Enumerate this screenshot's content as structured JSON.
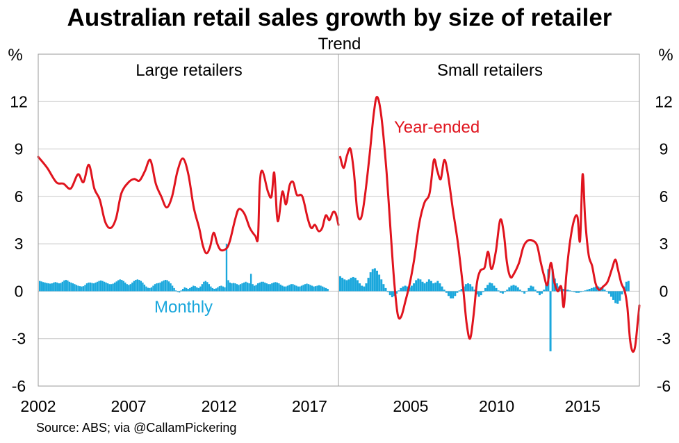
{
  "chart_data": {
    "type": "bar+line",
    "title": "Australian retail sales growth by size of retailer",
    "subtitle": "Trend",
    "source": "Source: ABS; via @CallamPickering",
    "ylabel_left": "%",
    "ylabel_right": "%",
    "ylim": [
      -6,
      15
    ],
    "yticks": [
      12,
      9,
      6,
      3,
      0,
      -3,
      -6
    ],
    "grid": true,
    "colors": {
      "year_ended": "#e0141e",
      "monthly": "#1aa7dc",
      "grid": "#c8c8c8",
      "divider": "#a0a0a0"
    },
    "series_labels": {
      "year_ended": "Year-ended",
      "monthly": "Monthly"
    },
    "panels": [
      {
        "name": "Large retailers",
        "xlim": [
          2002,
          2018.6
        ],
        "xticks": [
          2002,
          2007,
          2012,
          2017
        ],
        "year_ended": [
          [
            2002.0,
            8.5
          ],
          [
            2002.5,
            7.8
          ],
          [
            2003.0,
            6.9
          ],
          [
            2003.4,
            6.8
          ],
          [
            2003.8,
            6.5
          ],
          [
            2004.2,
            7.4
          ],
          [
            2004.5,
            6.9
          ],
          [
            2004.8,
            8.0
          ],
          [
            2005.1,
            6.5
          ],
          [
            2005.4,
            5.8
          ],
          [
            2005.7,
            4.4
          ],
          [
            2006.0,
            4.0
          ],
          [
            2006.3,
            4.6
          ],
          [
            2006.6,
            6.2
          ],
          [
            2007.0,
            6.9
          ],
          [
            2007.3,
            7.1
          ],
          [
            2007.6,
            7.0
          ],
          [
            2007.9,
            7.6
          ],
          [
            2008.2,
            8.3
          ],
          [
            2008.5,
            6.8
          ],
          [
            2008.8,
            6.0
          ],
          [
            2009.1,
            5.3
          ],
          [
            2009.4,
            6.0
          ],
          [
            2009.7,
            7.6
          ],
          [
            2010.0,
            8.4
          ],
          [
            2010.3,
            7.4
          ],
          [
            2010.6,
            5.3
          ],
          [
            2010.9,
            4.0
          ],
          [
            2011.1,
            2.9
          ],
          [
            2011.3,
            2.4
          ],
          [
            2011.5,
            2.8
          ],
          [
            2011.7,
            3.7
          ],
          [
            2011.9,
            3.0
          ],
          [
            2012.1,
            2.6
          ],
          [
            2012.4,
            2.7
          ],
          [
            2012.6,
            3.2
          ],
          [
            2012.9,
            4.6
          ],
          [
            2013.1,
            5.2
          ],
          [
            2013.4,
            4.9
          ],
          [
            2013.7,
            4.0
          ],
          [
            2014.0,
            3.5
          ],
          [
            2014.15,
            3.4
          ],
          [
            2014.25,
            6.8
          ],
          [
            2014.4,
            7.6
          ],
          [
            2014.7,
            6.3
          ],
          [
            2014.9,
            6.0
          ],
          [
            2015.05,
            7.5
          ],
          [
            2015.2,
            4.8
          ],
          [
            2015.3,
            4.6
          ],
          [
            2015.5,
            6.3
          ],
          [
            2015.7,
            5.5
          ],
          [
            2015.9,
            6.7
          ],
          [
            2016.1,
            6.9
          ],
          [
            2016.3,
            6.1
          ],
          [
            2016.6,
            6.0
          ],
          [
            2016.9,
            4.6
          ],
          [
            2017.1,
            4.0
          ],
          [
            2017.3,
            4.2
          ],
          [
            2017.5,
            3.8
          ],
          [
            2017.7,
            4.0
          ],
          [
            2017.9,
            4.8
          ],
          [
            2018.1,
            4.5
          ],
          [
            2018.3,
            5.0
          ],
          [
            2018.45,
            4.9
          ],
          [
            2018.6,
            4.2
          ]
        ],
        "monthly": [
          0.65,
          0.62,
          0.58,
          0.55,
          0.52,
          0.5,
          0.48,
          0.5,
          0.55,
          0.58,
          0.55,
          0.5,
          0.52,
          0.6,
          0.68,
          0.72,
          0.68,
          0.6,
          0.55,
          0.5,
          0.45,
          0.4,
          0.35,
          0.32,
          0.3,
          0.32,
          0.4,
          0.5,
          0.55,
          0.55,
          0.52,
          0.5,
          0.55,
          0.6,
          0.65,
          0.68,
          0.65,
          0.6,
          0.55,
          0.5,
          0.45,
          0.45,
          0.48,
          0.55,
          0.62,
          0.7,
          0.75,
          0.72,
          0.65,
          0.55,
          0.45,
          0.4,
          0.45,
          0.55,
          0.65,
          0.72,
          0.75,
          0.72,
          0.65,
          0.55,
          0.42,
          0.3,
          0.22,
          0.2,
          0.25,
          0.35,
          0.45,
          0.5,
          0.52,
          0.55,
          0.62,
          0.68,
          0.72,
          0.7,
          0.62,
          0.5,
          0.35,
          0.2,
          0.05,
          -0.05,
          -0.08,
          0.05,
          0.15,
          0.25,
          0.2,
          0.15,
          0.2,
          0.28,
          0.35,
          0.32,
          0.25,
          0.2,
          0.3,
          0.45,
          0.6,
          0.65,
          0.58,
          0.45,
          0.3,
          0.2,
          0.15,
          0.18,
          0.25,
          0.32,
          0.35,
          0.3,
          0.25,
          3.0,
          0.7,
          0.55,
          0.5,
          0.52,
          0.5,
          0.45,
          0.4,
          0.45,
          0.5,
          0.55,
          0.6,
          0.55,
          0.5,
          1.1,
          0.45,
          0.35,
          0.4,
          0.5,
          0.55,
          0.6,
          0.6,
          0.55,
          0.5,
          0.45,
          0.45,
          0.5,
          0.55,
          0.58,
          0.55,
          0.5,
          0.42,
          0.35,
          0.3,
          0.3,
          0.35,
          0.4,
          0.45,
          0.45,
          0.4,
          0.35,
          0.3,
          0.3,
          0.35,
          0.4,
          0.45,
          0.48,
          0.45,
          0.4,
          0.35,
          0.3,
          0.32,
          0.35,
          0.38,
          0.35,
          0.3,
          0.25,
          0.2,
          0.15
        ]
      },
      {
        "name": "Small retailers",
        "xlim": [
          2000.8,
          2018.3
        ],
        "xticks": [
          2005,
          2010,
          2015
        ],
        "year_ended": [
          [
            2000.9,
            8.5
          ],
          [
            2001.1,
            7.8
          ],
          [
            2001.3,
            8.6
          ],
          [
            2001.5,
            9.0
          ],
          [
            2001.7,
            7.5
          ],
          [
            2001.9,
            5.0
          ],
          [
            2002.1,
            4.6
          ],
          [
            2002.3,
            5.7
          ],
          [
            2002.6,
            8.5
          ],
          [
            2002.85,
            11.2
          ],
          [
            2003.05,
            12.3
          ],
          [
            2003.3,
            11.0
          ],
          [
            2003.6,
            7.5
          ],
          [
            2003.85,
            3.5
          ],
          [
            2004.05,
            0.5
          ],
          [
            2004.25,
            -1.5
          ],
          [
            2004.45,
            -1.6
          ],
          [
            2004.7,
            -0.6
          ],
          [
            2004.95,
            0.5
          ],
          [
            2005.2,
            2.0
          ],
          [
            2005.5,
            4.3
          ],
          [
            2005.8,
            5.6
          ],
          [
            2006.1,
            6.2
          ],
          [
            2006.35,
            8.3
          ],
          [
            2006.55,
            7.6
          ],
          [
            2006.75,
            7.1
          ],
          [
            2006.95,
            8.3
          ],
          [
            2007.15,
            7.5
          ],
          [
            2007.45,
            5.2
          ],
          [
            2007.75,
            3.0
          ],
          [
            2008.05,
            0.2
          ],
          [
            2008.25,
            -2.0
          ],
          [
            2008.45,
            -3.0
          ],
          [
            2008.65,
            -1.6
          ],
          [
            2008.85,
            0.5
          ],
          [
            2009.05,
            1.3
          ],
          [
            2009.3,
            1.5
          ],
          [
            2009.5,
            2.5
          ],
          [
            2009.7,
            1.4
          ],
          [
            2009.95,
            2.5
          ],
          [
            2010.2,
            4.5
          ],
          [
            2010.4,
            3.8
          ],
          [
            2010.6,
            1.8
          ],
          [
            2010.8,
            0.9
          ],
          [
            2011.0,
            1.1
          ],
          [
            2011.3,
            1.8
          ],
          [
            2011.55,
            2.8
          ],
          [
            2011.8,
            3.2
          ],
          [
            2012.1,
            3.2
          ],
          [
            2012.35,
            2.9
          ],
          [
            2012.55,
            1.9
          ],
          [
            2012.75,
            1.0
          ],
          [
            2012.95,
            0.4
          ],
          [
            2013.15,
            1.8
          ],
          [
            2013.35,
            0.6
          ],
          [
            2013.55,
            0.0
          ],
          [
            2013.75,
            0.3
          ],
          [
            2013.9,
            -1.0
          ],
          [
            2014.05,
            1.0
          ],
          [
            2014.25,
            3.0
          ],
          [
            2014.5,
            4.5
          ],
          [
            2014.7,
            4.7
          ],
          [
            2014.85,
            3.2
          ],
          [
            2015.0,
            7.4
          ],
          [
            2015.15,
            4.5
          ],
          [
            2015.35,
            2.3
          ],
          [
            2015.55,
            1.6
          ],
          [
            2015.75,
            0.5
          ],
          [
            2015.95,
            0.1
          ],
          [
            2016.2,
            0.3
          ],
          [
            2016.45,
            0.6
          ],
          [
            2016.7,
            1.4
          ],
          [
            2016.9,
            2.0
          ],
          [
            2017.05,
            1.4
          ],
          [
            2017.25,
            0.5
          ],
          [
            2017.45,
            0.0
          ],
          [
            2017.6,
            -1.0
          ],
          [
            2017.75,
            -3.0
          ],
          [
            2017.9,
            -3.8
          ],
          [
            2018.05,
            -3.5
          ],
          [
            2018.2,
            -2.0
          ],
          [
            2018.3,
            -0.9
          ]
        ],
        "monthly": [
          0.95,
          0.85,
          0.75,
          0.7,
          0.75,
          0.85,
          0.9,
          0.85,
          0.7,
          0.5,
          0.35,
          0.3,
          0.5,
          0.85,
          1.2,
          1.4,
          1.45,
          1.3,
          1.05,
          0.75,
          0.45,
          0.2,
          -0.05,
          -0.25,
          -0.38,
          -0.3,
          -0.15,
          0.05,
          0.2,
          0.3,
          0.35,
          0.3,
          0.25,
          0.35,
          0.5,
          0.7,
          0.8,
          0.75,
          0.6,
          0.5,
          0.6,
          0.75,
          0.65,
          0.5,
          0.55,
          0.65,
          0.5,
          0.3,
          0.1,
          -0.1,
          -0.3,
          -0.45,
          -0.45,
          -0.3,
          -0.1,
          0.05,
          0.15,
          0.3,
          0.45,
          0.5,
          0.45,
          0.3,
          0.1,
          -0.2,
          -0.35,
          -0.25,
          -0.05,
          0.2,
          0.4,
          0.55,
          0.5,
          0.35,
          0.2,
          0.05,
          -0.1,
          -0.15,
          -0.05,
          0.1,
          0.25,
          0.35,
          0.4,
          0.35,
          0.25,
          0.1,
          -0.05,
          -0.15,
          0.0,
          0.2,
          0.35,
          0.3,
          0.1,
          -0.1,
          -0.25,
          -0.15,
          0.1,
          0.5,
          1.4,
          -3.8,
          1.4,
          0.8,
          0.5,
          0.3,
          0.2,
          0.15,
          0.1,
          0.1,
          0.05,
          0.0,
          -0.05,
          -0.1,
          -0.1,
          -0.05,
          0.0,
          0.05,
          0.1,
          0.15,
          0.2,
          0.25,
          0.3,
          0.3,
          0.25,
          0.2,
          0.1,
          0.0,
          -0.15,
          -0.35,
          -0.55,
          -0.75,
          -0.8,
          -0.6,
          -0.2,
          0.3,
          0.6,
          0.65
        ]
      }
    ]
  }
}
